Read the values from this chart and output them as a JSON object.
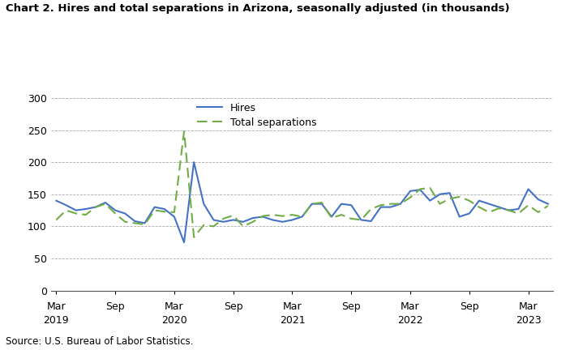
{
  "title": "Chart 2. Hires and total separations in Arizona, seasonally adjusted (in thousands)",
  "source": "Source: U.S. Bureau of Labor Statistics.",
  "hires": [
    140,
    133,
    125,
    127,
    130,
    137,
    125,
    120,
    108,
    105,
    130,
    127,
    115,
    75,
    200,
    135,
    110,
    107,
    110,
    107,
    113,
    115,
    110,
    107,
    110,
    115,
    135,
    135,
    115,
    135,
    133,
    110,
    108,
    130,
    130,
    135,
    155,
    157,
    140,
    150,
    152,
    115,
    120,
    140,
    135,
    130,
    125,
    127,
    158,
    142,
    135
  ],
  "separations": [
    110,
    125,
    120,
    118,
    130,
    135,
    120,
    107,
    105,
    103,
    125,
    123,
    122,
    248,
    83,
    102,
    100,
    112,
    117,
    100,
    107,
    116,
    118,
    116,
    118,
    115,
    135,
    137,
    113,
    118,
    112,
    110,
    127,
    133,
    135,
    135,
    145,
    158,
    160,
    135,
    143,
    146,
    140,
    130,
    122,
    128,
    125,
    120,
    133,
    122,
    132
  ],
  "x_tick_positions": [
    0,
    6,
    12,
    18,
    24,
    30,
    36,
    42,
    48
  ],
  "mar_sep_labels": [
    "Mar",
    "Sep",
    "Mar",
    "Sep",
    "Mar",
    "Sep",
    "Mar",
    "Sep",
    "Mar"
  ],
  "year_labels": [
    "2019",
    "",
    "2020",
    "",
    "2021",
    "",
    "2022",
    "",
    "2023"
  ],
  "ylim": [
    0,
    300
  ],
  "yticks": [
    0,
    50,
    100,
    150,
    200,
    250,
    300
  ],
  "hires_color": "#4472C4",
  "separations_color": "#70AD47",
  "background_color": "#FFFFFF",
  "grid_color": "#AAAAAA",
  "legend_labels": [
    "Hires",
    "Total separations"
  ]
}
